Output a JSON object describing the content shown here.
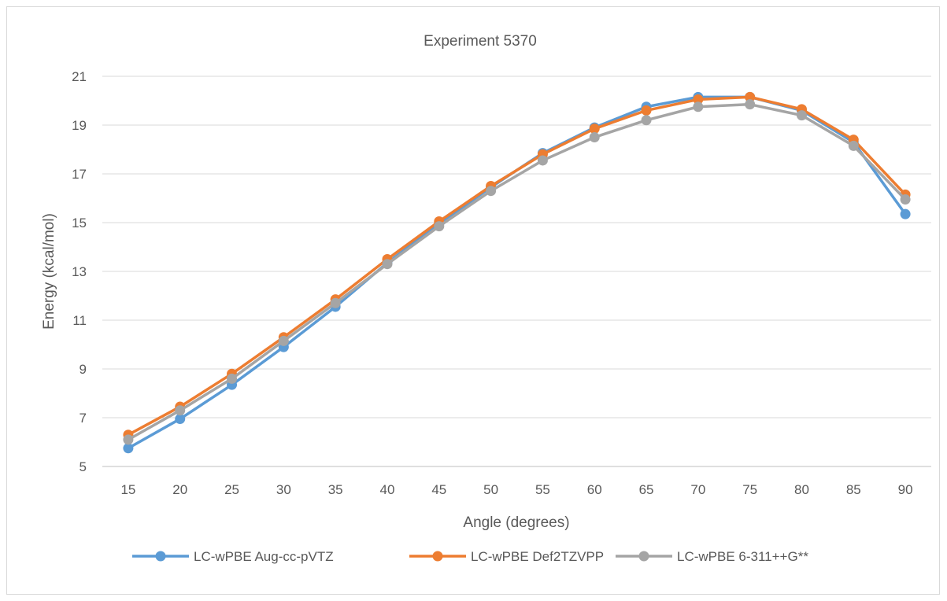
{
  "chart_data": {
    "type": "line",
    "title": "Experiment 5370",
    "xlabel": "Angle (degrees)",
    "ylabel": "Energy (kcal/mol)",
    "x": [
      15,
      20,
      25,
      30,
      35,
      40,
      45,
      50,
      55,
      60,
      65,
      70,
      75,
      80,
      85,
      90
    ],
    "ylim": [
      5,
      21
    ],
    "yticks": [
      5,
      7,
      9,
      11,
      13,
      15,
      17,
      19,
      21
    ],
    "grid": true,
    "legend": "bottom",
    "series": [
      {
        "name": "LC-wPBE Aug-cc-pVTZ",
        "color": "#5B9BD5",
        "values": [
          5.75,
          6.95,
          8.35,
          9.9,
          11.55,
          13.35,
          14.95,
          16.45,
          17.85,
          18.9,
          19.75,
          20.15,
          20.15,
          19.6,
          18.3,
          15.35
        ]
      },
      {
        "name": "LC-wPBE Def2TZVPP",
        "color": "#ED7D31",
        "values": [
          6.3,
          7.45,
          8.8,
          10.3,
          11.85,
          13.5,
          15.05,
          16.5,
          17.8,
          18.85,
          19.6,
          20.05,
          20.15,
          19.65,
          18.4,
          16.15
        ]
      },
      {
        "name": "LC-wPBE 6-311++G**",
        "color": "#A5A5A5",
        "values": [
          6.1,
          7.3,
          8.6,
          10.15,
          11.7,
          13.3,
          14.85,
          16.3,
          17.55,
          18.5,
          19.2,
          19.75,
          19.85,
          19.4,
          18.15,
          15.95
        ]
      }
    ]
  }
}
